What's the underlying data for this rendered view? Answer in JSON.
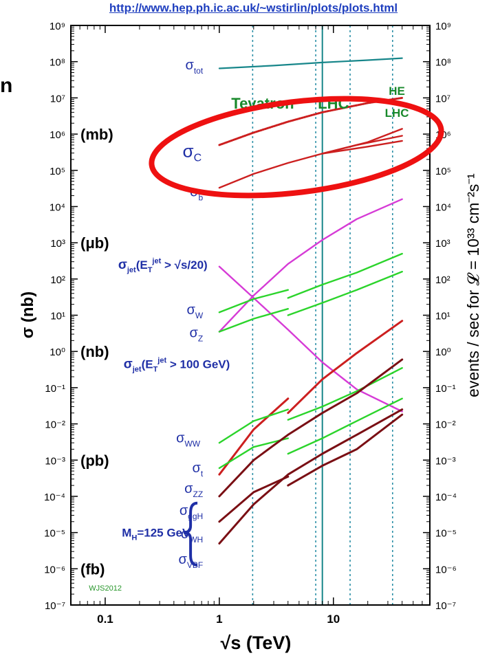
{
  "page": {
    "url_text": "http://www.hep.ph.ic.ac.uk/~wstirlin/plots/plots.html",
    "edge_letter": "n"
  },
  "colors": {
    "teal": "#17868a",
    "red": "#cc1f1f",
    "darkred": "#7a0f14",
    "green": "#2bd42b",
    "magenta": "#d63bd6",
    "blue_label": "#1f2fa6",
    "tevatron_green": "#18892b",
    "ellipse_red": "#ee1111",
    "wjs_green": "#27962a",
    "dotted_line": "#2a8fa6"
  },
  "chart_data": {
    "type": "line",
    "xscale": "log",
    "yscale": "log",
    "xlim": [
      0.05,
      70
    ],
    "ylim": [
      1e-07,
      1000000000.0
    ],
    "xlabel": "√s  (TeV)",
    "ylabel_left": "σ  (nb)",
    "ylabel_right": "events / sec for 𝓛 = 10³³ cm⁻²s⁻¹",
    "x_ticks": [
      {
        "v": 0.1,
        "label": "0.1"
      },
      {
        "v": 1,
        "label": "1"
      },
      {
        "v": 10,
        "label": "10"
      }
    ],
    "y_ticks": [
      {
        "exp": 9,
        "label": "10⁹"
      },
      {
        "exp": 8,
        "label": "10⁸"
      },
      {
        "exp": 7,
        "label": "10⁷"
      },
      {
        "exp": 6,
        "label": "10⁶"
      },
      {
        "exp": 5,
        "label": "10⁵"
      },
      {
        "exp": 4,
        "label": "10⁴"
      },
      {
        "exp": 3,
        "label": "10³"
      },
      {
        "exp": 2,
        "label": "10²"
      },
      {
        "exp": 1,
        "label": "10¹"
      },
      {
        "exp": 0,
        "label": "10⁰"
      },
      {
        "exp": -1,
        "label": "10⁻¹"
      },
      {
        "exp": -2,
        "label": "10⁻²"
      },
      {
        "exp": -3,
        "label": "10⁻³"
      },
      {
        "exp": -4,
        "label": "10⁻⁴"
      },
      {
        "exp": -5,
        "label": "10⁻⁵"
      },
      {
        "exp": -6,
        "label": "10⁻⁶"
      },
      {
        "exp": -7,
        "label": "10⁻⁷"
      }
    ],
    "unit_labels": [
      {
        "text": "(mb)",
        "y": 1000000.0
      },
      {
        "text": "(μb)",
        "y": 1000.0
      },
      {
        "text": "(nb)",
        "y": 1
      },
      {
        "text": "(pb)",
        "y": 0.001
      },
      {
        "text": "(fb)",
        "y": 1e-06
      }
    ],
    "vlines": [
      {
        "x": 1.96,
        "style": "dotted"
      },
      {
        "x": 7,
        "style": "dotted"
      },
      {
        "x": 8,
        "style": "solid"
      },
      {
        "x": 14,
        "style": "dotted"
      },
      {
        "x": 33,
        "style": "dotted"
      }
    ],
    "machine_labels": [
      {
        "text": "Tevatron",
        "x": 2.4,
        "y": 5000000.0
      },
      {
        "text": "LHC",
        "x": 10,
        "y": 5000000.0
      },
      {
        "text": "HE",
        "x": 36,
        "y": 12000000.0
      },
      {
        "text": "LHC",
        "x": 36,
        "y": 3000000.0
      }
    ],
    "series": [
      {
        "name": "σtot",
        "color_key": "teal",
        "width": 2.2,
        "segments": [
          [
            [
              1,
              65000000.0
            ],
            [
              3,
              78000000.0
            ],
            [
              8,
              95000000.0
            ],
            [
              20,
              110000000.0
            ],
            [
              40,
              125000000.0
            ]
          ]
        ]
      },
      {
        "name": "σc",
        "color_key": "red",
        "width": 3,
        "style": "dotted",
        "segments": [
          [
            [
              1,
              500000.0
            ],
            [
              2,
              1100000.0
            ],
            [
              4,
              2200000.0
            ],
            [
              8,
              4000000.0
            ],
            [
              20,
              7200000.0
            ],
            [
              40,
              10000000.0
            ]
          ]
        ]
      },
      {
        "name": "σb",
        "color_key": "red",
        "width": 2.4,
        "segments": [
          [
            [
              1,
              33000.0
            ],
            [
              2,
              80000.0
            ],
            [
              4,
              160000.0
            ],
            [
              8,
              290000.0
            ],
            [
              16,
              500000.0
            ],
            [
              40,
              900000.0
            ]
          ],
          [
            [
              8,
              290000.0
            ],
            [
              20,
              600000.0
            ],
            [
              40,
              1400000.0
            ]
          ],
          [
            [
              8,
              290000.0
            ],
            [
              20,
              450000.0
            ],
            [
              40,
              650000.0
            ]
          ]
        ]
      },
      {
        "name": "σjet(ET jet > √s/20)",
        "color_key": "magenta",
        "width": 2.4,
        "segments": [
          [
            [
              1,
              220
            ],
            [
              2,
              30
            ],
            [
              4,
              4
            ],
            [
              8,
              0.5
            ],
            [
              16,
              0.09
            ],
            [
              40,
              0.022
            ]
          ]
        ]
      },
      {
        "name": "σjet(ET jet > 100 GeV)",
        "color_key": "magenta",
        "width": 2.4,
        "segments": [
          [
            [
              1,
              3.5
            ],
            [
              2,
              35
            ],
            [
              4,
              260
            ],
            [
              8,
              1200
            ],
            [
              16,
              4500
            ],
            [
              40,
              16000
            ]
          ]
        ]
      },
      {
        "name": "σW",
        "color_key": "green",
        "width": 2.4,
        "segments": [
          [
            [
              1,
              12
            ],
            [
              2,
              28
            ],
            [
              4,
              50
            ]
          ],
          [
            [
              4,
              30
            ],
            [
              8,
              70
            ],
            [
              16,
              150
            ],
            [
              40,
              500
            ]
          ]
        ]
      },
      {
        "name": "σZ",
        "color_key": "green",
        "width": 2.4,
        "segments": [
          [
            [
              1,
              3.5
            ],
            [
              2,
              8
            ],
            [
              4,
              15
            ]
          ],
          [
            [
              4,
              10
            ],
            [
              8,
              22
            ],
            [
              16,
              50
            ],
            [
              40,
              160
            ]
          ]
        ]
      },
      {
        "name": "σt",
        "color_key": "red",
        "width": 3,
        "segments": [
          [
            [
              1,
              0.0004
            ],
            [
              2,
              0.007
            ],
            [
              4,
              0.05
            ]
          ],
          [
            [
              4,
              0.02
            ],
            [
              8,
              0.17
            ],
            [
              16,
              0.9
            ],
            [
              40,
              7
            ]
          ]
        ]
      },
      {
        "name": "σWW",
        "color_key": "green",
        "width": 2.4,
        "segments": [
          [
            [
              1,
              0.003
            ],
            [
              2,
              0.012
            ],
            [
              4,
              0.025
            ]
          ],
          [
            [
              4,
              0.013
            ],
            [
              8,
              0.03
            ],
            [
              16,
              0.08
            ],
            [
              40,
              0.35
            ]
          ]
        ]
      },
      {
        "name": "σZZ",
        "color_key": "green",
        "width": 2.4,
        "segments": [
          [
            [
              1,
              0.0006
            ],
            [
              2,
              0.0023
            ],
            [
              4,
              0.004
            ]
          ],
          [
            [
              4,
              0.0015
            ],
            [
              8,
              0.004
            ],
            [
              16,
              0.012
            ],
            [
              40,
              0.05
            ]
          ]
        ]
      },
      {
        "name": "σggH",
        "color_key": "darkred",
        "width": 3,
        "segments": [
          [
            [
              1,
              0.0001
            ],
            [
              2,
              0.001
            ],
            [
              4,
              0.005
            ],
            [
              8,
              0.02
            ],
            [
              16,
              0.07
            ],
            [
              40,
              0.6
            ]
          ]
        ]
      },
      {
        "name": "σWH",
        "color_key": "darkred",
        "width": 3,
        "segments": [
          [
            [
              1,
              2e-05
            ],
            [
              2,
              0.00013
            ],
            [
              4,
              0.00035
            ]
          ],
          [
            [
              4,
              0.0002
            ],
            [
              8,
              0.0007
            ],
            [
              16,
              0.002
            ],
            [
              40,
              0.018
            ]
          ]
        ]
      },
      {
        "name": "σVBF",
        "color_key": "darkred",
        "width": 3,
        "segments": [
          [
            [
              1,
              5e-06
            ],
            [
              2,
              6e-05
            ],
            [
              4,
              0.0004
            ],
            [
              8,
              0.0015
            ],
            [
              16,
              0.005
            ],
            [
              40,
              0.025
            ]
          ]
        ]
      }
    ],
    "curve_labels": [
      {
        "id": "sigma-tot",
        "sym": "σ",
        "sub": "tot",
        "x": 0.72,
        "y": 80000000.0,
        "size": 20
      },
      {
        "id": "sigma-c",
        "sym": "σ",
        "sub": "C",
        "x": 0.7,
        "y": 300000.0,
        "size": 26
      },
      {
        "id": "sigma-b",
        "sym": "σ",
        "sub": "b",
        "x": 0.72,
        "y": 25000.0,
        "size": 20
      },
      {
        "id": "sigma-w",
        "sym": "σ",
        "sub": "W",
        "x": 0.72,
        "y": 14,
        "size": 20
      },
      {
        "id": "sigma-z",
        "sym": "σ",
        "sub": "Z",
        "x": 0.72,
        "y": 3.2,
        "size": 20
      },
      {
        "id": "sigma-ww",
        "sym": "σ",
        "sub": "WW",
        "x": 0.68,
        "y": 0.004,
        "size": 20
      },
      {
        "id": "sigma-t",
        "sym": "σ",
        "sub": "t",
        "x": 0.72,
        "y": 0.0006,
        "size": 20
      },
      {
        "id": "sigma-zz",
        "sym": "σ",
        "sub": "ZZ",
        "x": 0.72,
        "y": 0.00016,
        "size": 20
      },
      {
        "id": "sigma-ggh",
        "sym": "σ",
        "sub": "ggH",
        "x": 0.72,
        "y": 4e-05,
        "size": 20
      },
      {
        "id": "sigma-wh",
        "sym": "σ",
        "sub": "WH",
        "x": 0.72,
        "y": 9e-06,
        "size": 20
      },
      {
        "id": "sigma-vbf",
        "sym": "σ",
        "sub": "VBF",
        "x": 0.72,
        "y": 1.8e-06,
        "size": 20
      }
    ],
    "jet_labels": [
      {
        "id": "jet1",
        "x": 0.13,
        "y": 250,
        "pre": "σ",
        "sub": "jet",
        "mid": "(E",
        "sub2": "T",
        "sup": "jet",
        "post": " > √s/20)"
      },
      {
        "id": "jet2",
        "x": 0.145,
        "y": 0.45,
        "pre": "σ",
        "sub": "jet",
        "mid": "(E",
        "sub2": "T",
        "sup": "jet",
        "post": " > 100 GeV)"
      }
    ],
    "higgs_mass_label": {
      "text": "M",
      "sub": "H",
      "rest": "=125 GeV",
      "x": 0.14,
      "y": 1e-05
    },
    "credit": {
      "text": "WJS2012",
      "x": 0.072,
      "y": 3e-07
    },
    "highlight": {
      "shape": "ellipse",
      "x": 4,
      "y": 1000000.0
    }
  }
}
